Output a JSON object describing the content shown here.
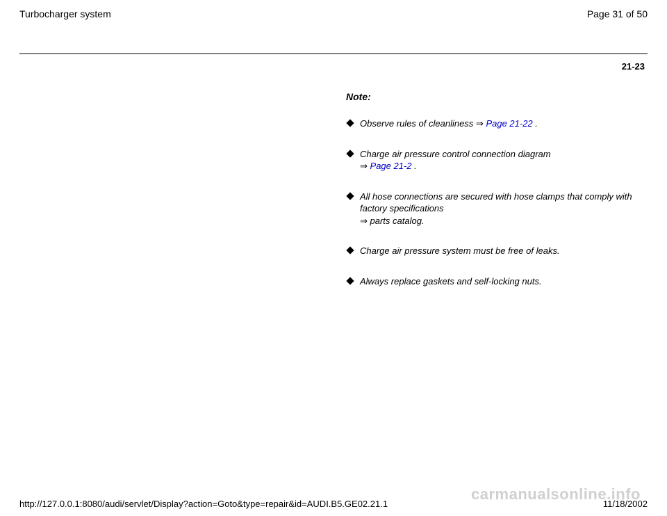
{
  "header": {
    "title": "Turbocharger system",
    "page_indicator": "Page 31 of 50"
  },
  "section_number": "21-23",
  "note": {
    "heading": "Note:",
    "items": [
      {
        "text_before": "Observe rules of cleanliness   ",
        "arrow": "⇒",
        "link": "Page 21-22",
        "text_after": " ."
      },
      {
        "text_before": "Charge air pressure control connection diagram ",
        "arrow": "⇒",
        "link": "Page 21-2",
        "text_after": " ."
      },
      {
        "text_before": "All hose connections are secured with hose clamps that comply with factory specifications ",
        "arrow": "⇒",
        "link": "",
        "text_after": " parts catalog."
      },
      {
        "text_before": "Charge air pressure system must be free of leaks.",
        "arrow": "",
        "link": "",
        "text_after": ""
      },
      {
        "text_before": "Always replace gaskets and self-locking nuts.",
        "arrow": "",
        "link": "",
        "text_after": ""
      }
    ]
  },
  "watermark": "carmanualsonline.info",
  "footer": {
    "url": "http://127.0.0.1:8080/audi/servlet/Display?action=Goto&type=repair&id=AUDI.B5.GE02.21.1",
    "date": "11/18/2002"
  }
}
